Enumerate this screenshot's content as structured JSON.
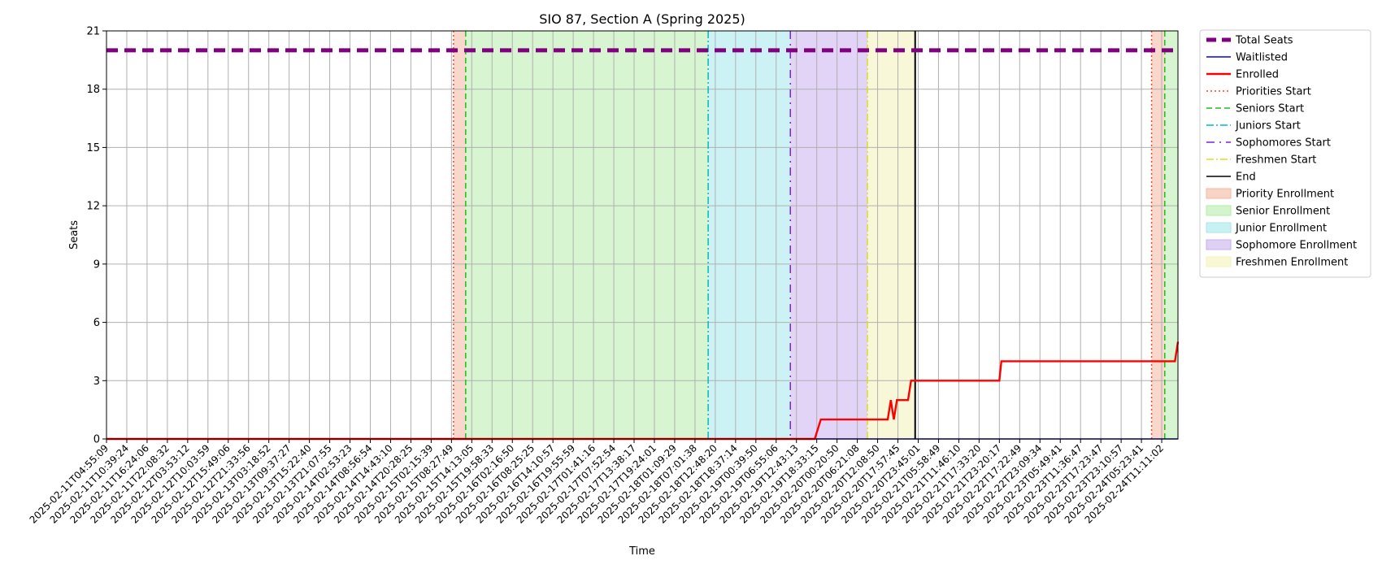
{
  "chart_data": {
    "type": "line",
    "title": "SIO 87, Section A (Spring 2025)",
    "xlabel": "Time",
    "ylabel": "Seats",
    "ylim": [
      0,
      21
    ],
    "yticks": [
      0,
      3,
      6,
      9,
      12,
      15,
      18,
      21
    ],
    "grid": true,
    "legend_position": "outside right, top",
    "xticks": [
      "2025-02-11T04:55:09",
      "2025-02-11T10:39:24",
      "2025-02-11T16:24:06",
      "2025-02-11T22:08:32",
      "2025-02-12T03:53:12",
      "2025-02-12T10:03:59",
      "2025-02-12T15:49:06",
      "2025-02-12T21:33:56",
      "2025-02-13T03:18:52",
      "2025-02-13T09:37:27",
      "2025-02-13T15:22:40",
      "2025-02-13T21:07:55",
      "2025-02-14T02:53:23",
      "2025-02-14T08:56:54",
      "2025-02-14T14:43:10",
      "2025-02-14T20:28:25",
      "2025-02-15T02:15:39",
      "2025-02-15T08:27:49",
      "2025-02-15T14:13:05",
      "2025-02-15T19:58:33",
      "2025-02-16T02:16:50",
      "2025-02-16T08:25:25",
      "2025-02-16T14:10:57",
      "2025-02-16T19:55:59",
      "2025-02-17T01:41:16",
      "2025-02-17T07:52:54",
      "2025-02-17T13:38:17",
      "2025-02-17T19:24:01",
      "2025-02-18T01:09:29",
      "2025-02-18T07:01:38",
      "2025-02-18T12:48:20",
      "2025-02-18T18:37:14",
      "2025-02-19T00:39:50",
      "2025-02-19T06:55:06",
      "2025-02-19T12:43:13",
      "2025-02-19T18:33:15",
      "2025-02-20T00:20:50",
      "2025-02-20T06:21:08",
      "2025-02-20T12:08:50",
      "2025-02-20T17:57:45",
      "2025-02-20T23:45:01",
      "2025-02-21T05:58:49",
      "2025-02-21T11:46:10",
      "2025-02-21T17:33:20",
      "2025-02-21T23:20:17",
      "2025-02-22T17:22:49",
      "2025-02-22T23:09:34",
      "2025-02-23T05:49:41",
      "2025-02-23T11:36:47",
      "2025-02-23T17:23:47",
      "2025-02-23T23:10:57",
      "2025-02-24T05:23:41",
      "2025-02-24T11:11:02"
    ],
    "x_range": [
      0,
      52.8
    ],
    "series": [
      {
        "name": "Total Seats",
        "style": "dashed",
        "color": "#800080",
        "points": [
          [
            0,
            20
          ],
          [
            52.8,
            20
          ]
        ]
      },
      {
        "name": "Waitlisted",
        "style": "solid",
        "color": "#0000ff",
        "points": [
          [
            0,
            0
          ],
          [
            52.8,
            0
          ]
        ]
      },
      {
        "name": "Enrolled",
        "style": "solid",
        "color": "#ff0000",
        "points": [
          [
            0,
            0
          ],
          [
            34.9,
            0
          ],
          [
            35.2,
            1
          ],
          [
            38.5,
            1
          ],
          [
            38.65,
            2
          ],
          [
            38.8,
            1
          ],
          [
            38.95,
            2
          ],
          [
            39.5,
            2
          ],
          [
            39.65,
            3
          ],
          [
            44.0,
            3
          ],
          [
            44.1,
            4
          ],
          [
            52.65,
            4
          ],
          [
            52.8,
            5
          ]
        ]
      }
    ],
    "event_lines": [
      {
        "name": "Priorities Start",
        "x": 17.1,
        "color": "#ff4422",
        "style": "dotted"
      },
      {
        "name": "Seniors Start",
        "x": 17.7,
        "color": "#22bb22",
        "style": "dashed"
      },
      {
        "name": "Juniors Start",
        "x": 29.65,
        "color": "#00bbbb",
        "style": "dashdot"
      },
      {
        "name": "Sophomores Start",
        "x": 33.7,
        "color": "#7b22dd",
        "style": "loosedashdot"
      },
      {
        "name": "Freshmen Start",
        "x": 37.5,
        "color": "#dddd22",
        "style": "dashdot"
      },
      {
        "name": "End",
        "x": 39.85,
        "color": "#000000",
        "style": "solid"
      },
      {
        "name": "",
        "x": 51.5,
        "color": "#ff4422",
        "style": "dotted"
      },
      {
        "name": "",
        "x": 52.15,
        "color": "#22bb22",
        "style": "dashed"
      }
    ],
    "shaded_regions": [
      {
        "name": "Priority Enrollment",
        "x0": 17.1,
        "x1": 17.7,
        "color": "#f4b8a0"
      },
      {
        "name": "Senior Enrollment",
        "x0": 17.7,
        "x1": 29.65,
        "color": "#b6ecaa"
      },
      {
        "name": "Junior Enrollment",
        "x0": 29.65,
        "x1": 33.7,
        "color": "#a4e8ec"
      },
      {
        "name": "Sophomore Enrollment",
        "x0": 33.7,
        "x1": 37.5,
        "color": "#c8b0ee"
      },
      {
        "name": "Freshmen Enrollment",
        "x0": 37.5,
        "x1": 39.85,
        "color": "#f3f3b8"
      },
      {
        "name": "",
        "x0": 51.5,
        "x1": 52.15,
        "color": "#f4b8a0"
      },
      {
        "name": "",
        "x0": 52.15,
        "x1": 52.8,
        "color": "#b6ecaa"
      }
    ],
    "legend": [
      {
        "label": "Total Seats",
        "kind": "line",
        "color": "#800080",
        "style": "thickdash"
      },
      {
        "label": "Waitlisted",
        "kind": "line",
        "color": "#0000ff",
        "style": "solid"
      },
      {
        "label": "Enrolled",
        "kind": "line",
        "color": "#ff0000",
        "style": "thick"
      },
      {
        "label": "Priorities Start",
        "kind": "line",
        "color": "#ff4422",
        "style": "dotted"
      },
      {
        "label": "Seniors Start",
        "kind": "line",
        "color": "#22bb22",
        "style": "dashed"
      },
      {
        "label": "Juniors Start",
        "kind": "line",
        "color": "#00bbbb",
        "style": "dashdot"
      },
      {
        "label": "Sophomores Start",
        "kind": "line",
        "color": "#7b22dd",
        "style": "loosedashdot"
      },
      {
        "label": "Freshmen Start",
        "kind": "line",
        "color": "#dddd22",
        "style": "dashdot"
      },
      {
        "label": "End",
        "kind": "line",
        "color": "#000000",
        "style": "solid"
      },
      {
        "label": "Priority Enrollment",
        "kind": "patch",
        "color": "#f4b8a0"
      },
      {
        "label": "Senior Enrollment",
        "kind": "patch",
        "color": "#b6ecaa"
      },
      {
        "label": "Junior Enrollment",
        "kind": "patch",
        "color": "#a4e8ec"
      },
      {
        "label": "Sophomore Enrollment",
        "kind": "patch",
        "color": "#c8b0ee"
      },
      {
        "label": "Freshmen Enrollment",
        "kind": "patch",
        "color": "#f3f3b8"
      }
    ]
  }
}
